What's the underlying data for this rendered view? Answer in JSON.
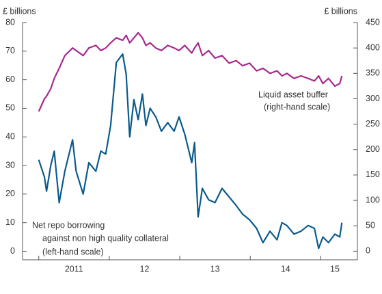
{
  "chart_data": {
    "type": "line",
    "y_label": "£ billions",
    "y2_label": "£ billions",
    "annotations": [
      {
        "lines": [
          "Liquid asset buffer",
          "(right-hand scale)"
        ]
      },
      {
        "lines": [
          "Net repo borrowing",
          "against non high quality collateral",
          "(left-hand scale)"
        ]
      }
    ],
    "x": [
      2011.0,
      2011.08,
      2011.11,
      2011.17,
      2011.22,
      2011.29,
      2011.37,
      2011.48,
      2011.53,
      2011.63,
      2011.71,
      2011.81,
      2011.88,
      2011.95,
      2012.02,
      2012.1,
      2012.19,
      2012.24,
      2012.29,
      2012.35,
      2012.41,
      2012.47,
      2012.52,
      2012.58,
      2012.66,
      2012.74,
      2012.83,
      2012.92,
      2012.99,
      2013.07,
      2013.17,
      2013.21,
      2013.26,
      2013.32,
      2013.41,
      2013.5,
      2013.6,
      2013.7,
      2013.8,
      2013.89,
      2013.99,
      2014.09,
      2014.18,
      2014.28,
      2014.38,
      2014.45,
      2014.52,
      2014.62,
      2014.72,
      2014.82,
      2014.91,
      2014.97,
      2015.03,
      2015.11,
      2015.2,
      2015.27,
      2015.3
    ],
    "xlim": [
      2010.77,
      2015.52
    ],
    "xticks": [
      {
        "value": 2011.5,
        "label": "2011"
      },
      {
        "value": 2012.5,
        "label": "12"
      },
      {
        "value": 2013.5,
        "label": "13"
      },
      {
        "value": 2014.5,
        "label": "14"
      },
      {
        "value": 2015.2,
        "label": "15"
      }
    ],
    "ylim": [
      -3,
      80
    ],
    "yticks": [
      0,
      10,
      20,
      30,
      40,
      50,
      60,
      70,
      80
    ],
    "y2lim": [
      -17,
      450
    ],
    "y2ticks": [
      0,
      50,
      100,
      150,
      200,
      250,
      300,
      350,
      400,
      450
    ],
    "series": [
      {
        "name": "Net repo borrowing against non high quality collateral",
        "color": "#0b5a8c",
        "values": [
          32,
          26,
          21,
          30,
          35,
          17,
          28,
          39,
          28,
          20,
          31,
          28,
          35,
          34,
          44,
          66,
          69,
          62,
          40,
          53,
          46,
          55,
          44,
          50,
          47,
          42,
          45,
          42,
          47,
          41,
          31,
          38,
          12,
          22,
          18,
          17,
          22,
          19,
          16,
          13,
          11,
          8,
          3,
          7,
          4,
          10,
          9,
          6,
          7,
          9,
          8,
          1,
          5,
          3,
          6,
          5,
          10
        ]
      },
      {
        "name": "Liquid asset buffer",
        "color": "#a8288f",
        "axis": "y2",
        "values": [
          275,
          300,
          305,
          320,
          340,
          360,
          385,
          400,
          395,
          385,
          400,
          405,
          395,
          400,
          410,
          420,
          415,
          425,
          410,
          420,
          430,
          420,
          405,
          410,
          400,
          395,
          405,
          400,
          395,
          405,
          390,
          400,
          410,
          385,
          395,
          380,
          385,
          370,
          375,
          365,
          370,
          355,
          360,
          350,
          355,
          345,
          350,
          340,
          345,
          340,
          335,
          345,
          330,
          340,
          325,
          330,
          345
        ]
      }
    ]
  }
}
